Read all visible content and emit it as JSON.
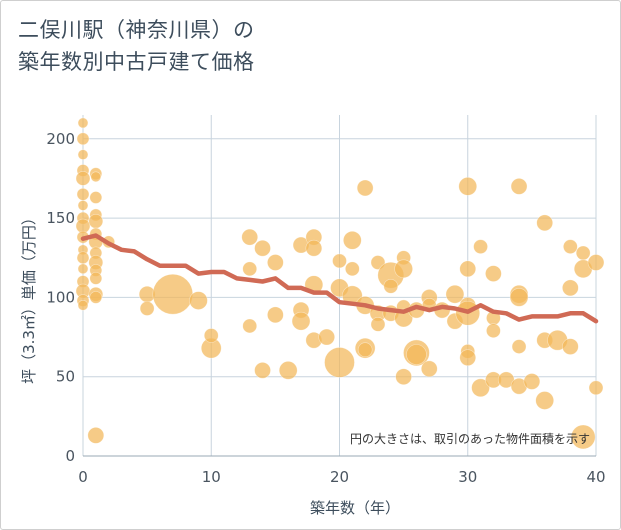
{
  "title_lines": [
    "二俣川駅（神奈川県）の",
    "築年数別中古戸建て価格"
  ],
  "chart_data": {
    "type": "scatter",
    "xlabel": "築年数（年）",
    "ylabel": "坪（3.3㎡）単価（万円）",
    "xlim": [
      0,
      40
    ],
    "ylim": [
      0,
      215
    ],
    "xticks": [
      "0",
      "10",
      "20",
      "30",
      "40"
    ],
    "yticks": [
      "0",
      "50",
      "100",
      "150",
      "200"
    ],
    "grid": true,
    "annotation": "円の大きさは、取引のあった物件面積を示す",
    "colors": {
      "bubble": "#f2b759",
      "trend": "#d06a55",
      "grid": "#c8d4de"
    },
    "points": [
      {
        "x": 0,
        "y": 210,
        "s": 5
      },
      {
        "x": 0,
        "y": 200,
        "s": 6
      },
      {
        "x": 0,
        "y": 190,
        "s": 5
      },
      {
        "x": 0,
        "y": 180,
        "s": 6
      },
      {
        "x": 0,
        "y": 175,
        "s": 7
      },
      {
        "x": 0,
        "y": 165,
        "s": 6
      },
      {
        "x": 0,
        "y": 158,
        "s": 5
      },
      {
        "x": 0,
        "y": 150,
        "s": 6
      },
      {
        "x": 0,
        "y": 145,
        "s": 7
      },
      {
        "x": 0,
        "y": 138,
        "s": 6
      },
      {
        "x": 0,
        "y": 130,
        "s": 5
      },
      {
        "x": 0,
        "y": 125,
        "s": 6
      },
      {
        "x": 0,
        "y": 118,
        "s": 5
      },
      {
        "x": 0,
        "y": 110,
        "s": 6
      },
      {
        "x": 0,
        "y": 104,
        "s": 7
      },
      {
        "x": 0,
        "y": 98,
        "s": 6
      },
      {
        "x": 0,
        "y": 95,
        "s": 5
      },
      {
        "x": 1,
        "y": 178,
        "s": 6
      },
      {
        "x": 1,
        "y": 176,
        "s": 5
      },
      {
        "x": 1,
        "y": 163,
        "s": 6
      },
      {
        "x": 1,
        "y": 152,
        "s": 6
      },
      {
        "x": 1,
        "y": 148,
        "s": 7
      },
      {
        "x": 1,
        "y": 140,
        "s": 6
      },
      {
        "x": 1,
        "y": 135,
        "s": 7
      },
      {
        "x": 1,
        "y": 128,
        "s": 6
      },
      {
        "x": 1,
        "y": 122,
        "s": 7
      },
      {
        "x": 1,
        "y": 117,
        "s": 6
      },
      {
        "x": 1,
        "y": 112,
        "s": 6
      },
      {
        "x": 1,
        "y": 102,
        "s": 7
      },
      {
        "x": 1,
        "y": 100,
        "s": 6
      },
      {
        "x": 1,
        "y": 13,
        "s": 8
      },
      {
        "x": 2,
        "y": 135,
        "s": 6
      },
      {
        "x": 5,
        "y": 102,
        "s": 8
      },
      {
        "x": 5,
        "y": 93,
        "s": 7
      },
      {
        "x": 7,
        "y": 102,
        "s": 20
      },
      {
        "x": 9,
        "y": 98,
        "s": 9
      },
      {
        "x": 10,
        "y": 68,
        "s": 10
      },
      {
        "x": 10,
        "y": 76,
        "s": 7
      },
      {
        "x": 13,
        "y": 138,
        "s": 8
      },
      {
        "x": 13,
        "y": 118,
        "s": 7
      },
      {
        "x": 13,
        "y": 82,
        "s": 7
      },
      {
        "x": 14,
        "y": 131,
        "s": 8
      },
      {
        "x": 14,
        "y": 54,
        "s": 8
      },
      {
        "x": 15,
        "y": 122,
        "s": 8
      },
      {
        "x": 15,
        "y": 89,
        "s": 8
      },
      {
        "x": 16,
        "y": 54,
        "s": 9
      },
      {
        "x": 17,
        "y": 133,
        "s": 8
      },
      {
        "x": 17,
        "y": 92,
        "s": 8
      },
      {
        "x": 17,
        "y": 85,
        "s": 9
      },
      {
        "x": 18,
        "y": 138,
        "s": 8
      },
      {
        "x": 18,
        "y": 131,
        "s": 8
      },
      {
        "x": 18,
        "y": 108,
        "s": 9
      },
      {
        "x": 18,
        "y": 73,
        "s": 8
      },
      {
        "x": 19,
        "y": 75,
        "s": 8
      },
      {
        "x": 20,
        "y": 123,
        "s": 7
      },
      {
        "x": 20,
        "y": 106,
        "s": 9
      },
      {
        "x": 20,
        "y": 59,
        "s": 15
      },
      {
        "x": 21,
        "y": 136,
        "s": 9
      },
      {
        "x": 21,
        "y": 118,
        "s": 7
      },
      {
        "x": 21,
        "y": 101,
        "s": 10
      },
      {
        "x": 22,
        "y": 169,
        "s": 8
      },
      {
        "x": 22,
        "y": 95,
        "s": 9
      },
      {
        "x": 22,
        "y": 68,
        "s": 10
      },
      {
        "x": 22,
        "y": 67,
        "s": 7
      },
      {
        "x": 23,
        "y": 122,
        "s": 7
      },
      {
        "x": 23,
        "y": 90,
        "s": 8
      },
      {
        "x": 23,
        "y": 83,
        "s": 7
      },
      {
        "x": 24,
        "y": 114,
        "s": 13
      },
      {
        "x": 24,
        "y": 107,
        "s": 7
      },
      {
        "x": 24,
        "y": 90,
        "s": 8
      },
      {
        "x": 25,
        "y": 125,
        "s": 7
      },
      {
        "x": 25,
        "y": 118,
        "s": 9
      },
      {
        "x": 25,
        "y": 94,
        "s": 7
      },
      {
        "x": 25,
        "y": 87,
        "s": 9
      },
      {
        "x": 25,
        "y": 50,
        "s": 8
      },
      {
        "x": 26,
        "y": 92,
        "s": 8
      },
      {
        "x": 26,
        "y": 65,
        "s": 13
      },
      {
        "x": 26,
        "y": 64,
        "s": 10
      },
      {
        "x": 27,
        "y": 100,
        "s": 8
      },
      {
        "x": 27,
        "y": 95,
        "s": 7
      },
      {
        "x": 27,
        "y": 55,
        "s": 8
      },
      {
        "x": 28,
        "y": 92,
        "s": 8
      },
      {
        "x": 29,
        "y": 102,
        "s": 9
      },
      {
        "x": 29,
        "y": 85,
        "s": 8
      },
      {
        "x": 30,
        "y": 170,
        "s": 9
      },
      {
        "x": 30,
        "y": 118,
        "s": 8
      },
      {
        "x": 30,
        "y": 95,
        "s": 8
      },
      {
        "x": 30,
        "y": 90,
        "s": 12
      },
      {
        "x": 30,
        "y": 66,
        "s": 7
      },
      {
        "x": 30,
        "y": 62,
        "s": 8
      },
      {
        "x": 31,
        "y": 132,
        "s": 7
      },
      {
        "x": 31,
        "y": 43,
        "s": 9
      },
      {
        "x": 32,
        "y": 115,
        "s": 8
      },
      {
        "x": 32,
        "y": 87,
        "s": 7
      },
      {
        "x": 32,
        "y": 79,
        "s": 7
      },
      {
        "x": 32,
        "y": 48,
        "s": 8
      },
      {
        "x": 33,
        "y": 48,
        "s": 8
      },
      {
        "x": 34,
        "y": 170,
        "s": 8
      },
      {
        "x": 34,
        "y": 102,
        "s": 9
      },
      {
        "x": 34,
        "y": 100,
        "s": 9
      },
      {
        "x": 34,
        "y": 69,
        "s": 7
      },
      {
        "x": 34,
        "y": 44,
        "s": 8
      },
      {
        "x": 35,
        "y": 47,
        "s": 8
      },
      {
        "x": 36,
        "y": 147,
        "s": 8
      },
      {
        "x": 36,
        "y": 73,
        "s": 8
      },
      {
        "x": 36,
        "y": 35,
        "s": 9
      },
      {
        "x": 37,
        "y": 73,
        "s": 10
      },
      {
        "x": 38,
        "y": 132,
        "s": 7
      },
      {
        "x": 38,
        "y": 106,
        "s": 8
      },
      {
        "x": 38,
        "y": 69,
        "s": 8
      },
      {
        "x": 39,
        "y": 128,
        "s": 7
      },
      {
        "x": 39,
        "y": 118,
        "s": 9
      },
      {
        "x": 39,
        "y": 12,
        "s": 12
      },
      {
        "x": 40,
        "y": 122,
        "s": 8
      },
      {
        "x": 40,
        "y": 43,
        "s": 7
      }
    ],
    "trend": [
      {
        "x": 0,
        "y": 137
      },
      {
        "x": 1,
        "y": 139
      },
      {
        "x": 2,
        "y": 134
      },
      {
        "x": 3,
        "y": 130
      },
      {
        "x": 4,
        "y": 129
      },
      {
        "x": 5,
        "y": 124
      },
      {
        "x": 6,
        "y": 120
      },
      {
        "x": 7,
        "y": 120
      },
      {
        "x": 8,
        "y": 120
      },
      {
        "x": 9,
        "y": 115
      },
      {
        "x": 10,
        "y": 116
      },
      {
        "x": 11,
        "y": 116
      },
      {
        "x": 12,
        "y": 112
      },
      {
        "x": 13,
        "y": 111
      },
      {
        "x": 14,
        "y": 110
      },
      {
        "x": 15,
        "y": 112
      },
      {
        "x": 16,
        "y": 106
      },
      {
        "x": 17,
        "y": 106
      },
      {
        "x": 18,
        "y": 103
      },
      {
        "x": 19,
        "y": 103
      },
      {
        "x": 20,
        "y": 97
      },
      {
        "x": 21,
        "y": 96
      },
      {
        "x": 22,
        "y": 95
      },
      {
        "x": 23,
        "y": 93
      },
      {
        "x": 24,
        "y": 92
      },
      {
        "x": 25,
        "y": 91
      },
      {
        "x": 26,
        "y": 94
      },
      {
        "x": 27,
        "y": 92
      },
      {
        "x": 28,
        "y": 94
      },
      {
        "x": 29,
        "y": 93
      },
      {
        "x": 30,
        "y": 91
      },
      {
        "x": 31,
        "y": 95
      },
      {
        "x": 32,
        "y": 91
      },
      {
        "x": 33,
        "y": 90
      },
      {
        "x": 34,
        "y": 86
      },
      {
        "x": 35,
        "y": 88
      },
      {
        "x": 36,
        "y": 88
      },
      {
        "x": 37,
        "y": 88
      },
      {
        "x": 38,
        "y": 90
      },
      {
        "x": 39,
        "y": 90
      },
      {
        "x": 40,
        "y": 85
      }
    ]
  }
}
